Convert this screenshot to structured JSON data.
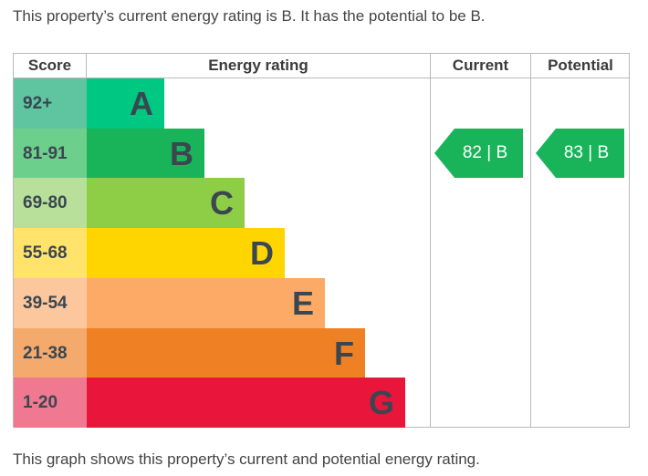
{
  "intro_text": "This property’s current energy rating is B. It has the potential to be B.",
  "outro_text": "This graph shows this property’s current and potential energy rating.",
  "chart_data": {
    "type": "bar",
    "headers": {
      "score": "Score",
      "rating": "Energy rating",
      "current": "Current",
      "potential": "Potential"
    },
    "bands": [
      {
        "score": "92+",
        "letter": "A",
        "bar_color": "#00c781",
        "score_color": "#5fc4a0"
      },
      {
        "score": "81-91",
        "letter": "B",
        "bar_color": "#19b459",
        "score_color": "#6dcf8c"
      },
      {
        "score": "69-80",
        "letter": "C",
        "bar_color": "#8dce46",
        "score_color": "#b8e09a"
      },
      {
        "score": "55-68",
        "letter": "D",
        "bar_color": "#ffd500",
        "score_color": "#ffe36b"
      },
      {
        "score": "39-54",
        "letter": "E",
        "bar_color": "#fcaa65",
        "score_color": "#fcc79d"
      },
      {
        "score": "21-38",
        "letter": "F",
        "bar_color": "#ef8023",
        "score_color": "#f4aa6c"
      },
      {
        "score": "1-20",
        "letter": "G",
        "bar_color": "#e9153b",
        "score_color": "#f07890"
      }
    ],
    "current": {
      "value": 82,
      "band": "B",
      "label": "82 | B",
      "color": "#19b459"
    },
    "potential": {
      "value": 83,
      "band": "B",
      "label": "83 | B",
      "color": "#19b459"
    }
  }
}
